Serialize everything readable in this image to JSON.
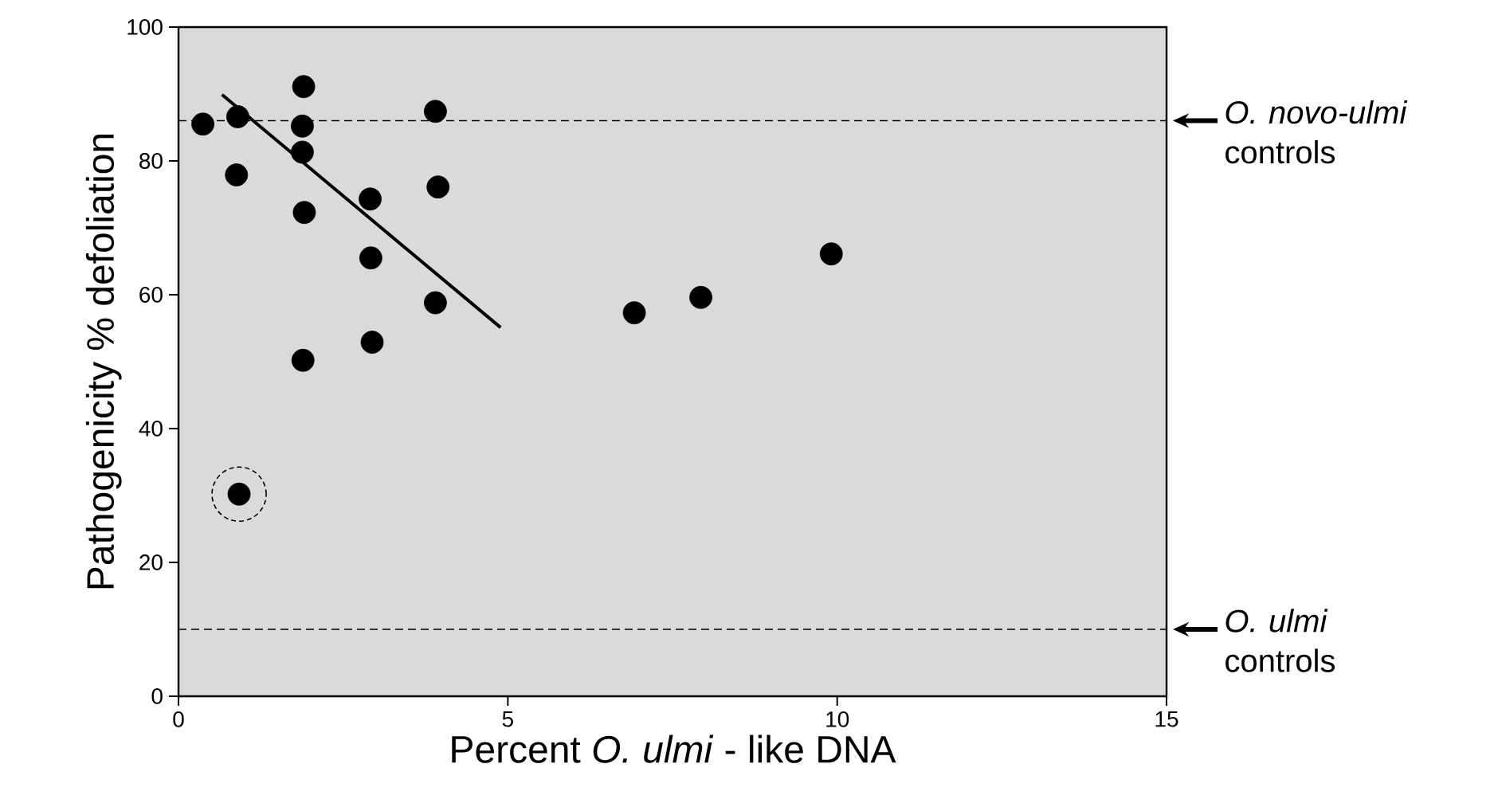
{
  "chart_data": {
    "type": "scatter",
    "xlabel": "Percent *O. ulmi* - like DNA",
    "ylabel": "Pathogenicity % defoliation",
    "xlim": [
      0,
      15
    ],
    "ylim": [
      0,
      100
    ],
    "xticks": [
      0,
      5,
      10,
      15
    ],
    "yticks": [
      0,
      20,
      40,
      60,
      80,
      100
    ],
    "grid": false,
    "series": [
      {
        "marker": "circle",
        "color": "#000000",
        "x": [
          0.37,
          0.9,
          0.88,
          1.9,
          1.88,
          1.88,
          1.91,
          1.89,
          2.91,
          2.92,
          2.94,
          3.9,
          3.94,
          3.9,
          6.92,
          7.93,
          9.91,
          0.92
        ],
        "values": [
          85.5,
          86.6,
          77.9,
          91.1,
          85.2,
          81.3,
          72.3,
          50.2,
          74.3,
          65.5,
          52.9,
          87.4,
          76.1,
          58.8,
          57.3,
          59.6,
          66.1,
          30.2
        ]
      },
      {
        "type": "line",
        "marker": "none",
        "color": "#000000",
        "x": [
          0.66,
          4.89
        ],
        "values": [
          89.9,
          55.1
        ]
      }
    ],
    "ref_lines": [
      {
        "axis": "y",
        "value": 86,
        "label": "*O. novo-ulmi* controls",
        "line_style": "dashed"
      },
      {
        "axis": "y",
        "value": 10,
        "label": "*O. ulmi* controls",
        "line_style": "dashed"
      }
    ]
  }
}
